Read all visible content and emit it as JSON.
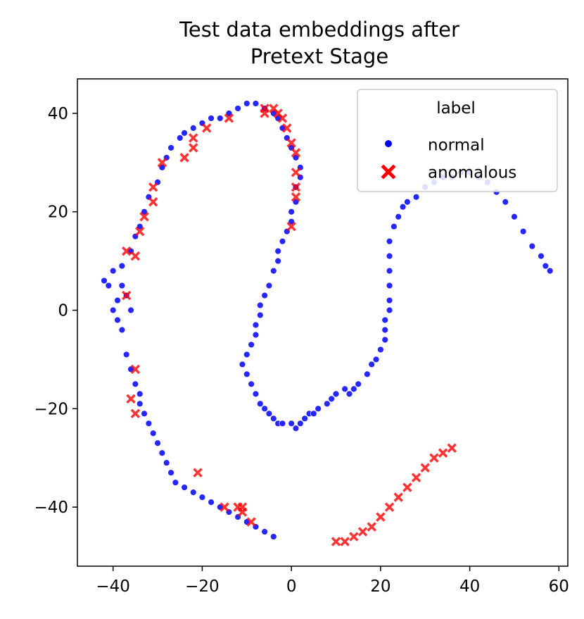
{
  "chart_data": {
    "type": "scatter",
    "title": [
      "Test data embeddings after",
      "Pretext Stage"
    ],
    "xlabel": "",
    "ylabel": "",
    "xlim": [
      -48,
      62
    ],
    "ylim": [
      -52,
      47
    ],
    "xticks": [
      -40,
      -20,
      0,
      20,
      40,
      60
    ],
    "yticks": [
      -40,
      -20,
      0,
      20,
      40
    ],
    "xtick_labels": [
      "−40",
      "−20",
      "0",
      "20",
      "40",
      "60"
    ],
    "ytick_labels": [
      "−40",
      "−20",
      "0",
      "20",
      "40"
    ],
    "grid": false,
    "legend": {
      "title": "label",
      "placement": "top-right",
      "entries": [
        {
          "label": "normal",
          "marker": "circle",
          "color": "#0000ff"
        },
        {
          "label": "anomalous",
          "marker": "x",
          "color": "#ff0000"
        }
      ]
    },
    "series": [
      {
        "name": "normal",
        "color": "#0000ff",
        "marker": "circle",
        "points": [
          [
            -41,
            5
          ],
          [
            -42,
            6
          ],
          [
            -40,
            8
          ],
          [
            -39,
            2
          ],
          [
            -40,
            0
          ],
          [
            -39,
            -2
          ],
          [
            -38,
            -4
          ],
          [
            -37,
            3
          ],
          [
            -38,
            5
          ],
          [
            -36,
            0
          ],
          [
            -38,
            9
          ],
          [
            -36,
            12
          ],
          [
            -35,
            15
          ],
          [
            -34,
            17
          ],
          [
            -33,
            20
          ],
          [
            -32,
            23
          ],
          [
            -30,
            26
          ],
          [
            -29,
            29
          ],
          [
            -28,
            31
          ],
          [
            -27,
            33
          ],
          [
            -25,
            35
          ],
          [
            -24,
            36
          ],
          [
            -22,
            37
          ],
          [
            -20,
            38
          ],
          [
            -18,
            39
          ],
          [
            -16,
            39
          ],
          [
            -14,
            40
          ],
          [
            -12,
            41
          ],
          [
            -10,
            42
          ],
          [
            -8,
            42
          ],
          [
            -6,
            41
          ],
          [
            -4,
            40
          ],
          [
            -3,
            39
          ],
          [
            -2,
            37
          ],
          [
            -1,
            35
          ],
          [
            0,
            33
          ],
          [
            1,
            31
          ],
          [
            2,
            29
          ],
          [
            2,
            27
          ],
          [
            1,
            25
          ],
          [
            1,
            22
          ],
          [
            0,
            20
          ],
          [
            0,
            18
          ],
          [
            -1,
            16
          ],
          [
            -2,
            14
          ],
          [
            -3,
            12
          ],
          [
            -3,
            10
          ],
          [
            -4,
            8
          ],
          [
            -5,
            5
          ],
          [
            -6,
            3
          ],
          [
            -7,
            1
          ],
          [
            -7,
            -1
          ],
          [
            -8,
            -3
          ],
          [
            -8,
            -5
          ],
          [
            -9,
            -7
          ],
          [
            -10,
            -9
          ],
          [
            -11,
            -11
          ],
          [
            -10,
            -13
          ],
          [
            -9,
            -15
          ],
          [
            -8,
            -17
          ],
          [
            -7,
            -19
          ],
          [
            -6,
            -20
          ],
          [
            -5,
            -21
          ],
          [
            -4,
            -22
          ],
          [
            -3,
            -23
          ],
          [
            -2,
            -23
          ],
          [
            0,
            -23
          ],
          [
            1,
            -24
          ],
          [
            2,
            -23
          ],
          [
            3,
            -22
          ],
          [
            4,
            -21
          ],
          [
            5,
            -21
          ],
          [
            6,
            -20
          ],
          [
            8,
            -19
          ],
          [
            9,
            -18
          ],
          [
            10,
            -17
          ],
          [
            12,
            -16
          ],
          [
            13,
            -17
          ],
          [
            14,
            -16
          ],
          [
            15,
            -15
          ],
          [
            17,
            -13
          ],
          [
            18,
            -11
          ],
          [
            19,
            -10
          ],
          [
            20,
            -8
          ],
          [
            21,
            -6
          ],
          [
            21,
            -4
          ],
          [
            21,
            -2
          ],
          [
            22,
            0
          ],
          [
            22,
            2
          ],
          [
            22,
            5
          ],
          [
            22,
            8
          ],
          [
            22,
            11
          ],
          [
            22,
            14
          ],
          [
            23,
            17
          ],
          [
            24,
            19
          ],
          [
            25,
            21
          ],
          [
            26,
            22
          ],
          [
            28,
            23
          ],
          [
            30,
            25
          ],
          [
            32,
            26
          ],
          [
            34,
            27
          ],
          [
            36,
            27
          ],
          [
            38,
            28
          ],
          [
            40,
            28
          ],
          [
            42,
            27
          ],
          [
            44,
            26
          ],
          [
            46,
            24
          ],
          [
            48,
            22
          ],
          [
            50,
            19
          ],
          [
            52,
            16
          ],
          [
            54,
            13
          ],
          [
            56,
            11
          ],
          [
            57,
            9
          ],
          [
            58,
            8
          ],
          [
            -37,
            -9
          ],
          [
            -36,
            -12
          ],
          [
            -35,
            -15
          ],
          [
            -34,
            -17
          ],
          [
            -34,
            -19
          ],
          [
            -33,
            -21
          ],
          [
            -32,
            -23
          ],
          [
            -31,
            -25
          ],
          [
            -30,
            -27
          ],
          [
            -29,
            -29
          ],
          [
            -28,
            -31
          ],
          [
            -27,
            -33
          ],
          [
            -26,
            -35
          ],
          [
            -24,
            -36
          ],
          [
            -22,
            -37
          ],
          [
            -20,
            -38
          ],
          [
            -18,
            -39
          ],
          [
            -16,
            -40
          ],
          [
            -14,
            -41
          ],
          [
            -12,
            -42
          ],
          [
            -10,
            -43
          ],
          [
            -8,
            -44
          ],
          [
            -6,
            -45
          ],
          [
            -4,
            -46
          ]
        ]
      },
      {
        "name": "anomalous",
        "color": "#ff0000",
        "marker": "x",
        "points": [
          [
            -37,
            12
          ],
          [
            -35,
            11
          ],
          [
            -34,
            16
          ],
          [
            -33,
            19
          ],
          [
            -31,
            22
          ],
          [
            -31,
            25
          ],
          [
            -29,
            30
          ],
          [
            -24,
            31
          ],
          [
            -22,
            33
          ],
          [
            -22,
            35
          ],
          [
            -19,
            37
          ],
          [
            -14,
            39
          ],
          [
            -6,
            41
          ],
          [
            -6,
            40
          ],
          [
            -4,
            41
          ],
          [
            -3,
            40
          ],
          [
            -2,
            39
          ],
          [
            -1,
            37
          ],
          [
            0,
            34
          ],
          [
            1,
            32
          ],
          [
            1,
            28
          ],
          [
            1,
            25
          ],
          [
            1,
            23
          ],
          [
            0,
            17
          ],
          [
            -37,
            3
          ],
          [
            -35,
            -12
          ],
          [
            -36,
            -18
          ],
          [
            -35,
            -21
          ],
          [
            -21,
            -33
          ],
          [
            -15,
            -40
          ],
          [
            -12,
            -40
          ],
          [
            -11,
            -41
          ],
          [
            -11,
            -40
          ],
          [
            -9,
            -43
          ],
          [
            10,
            -47
          ],
          [
            12,
            -47
          ],
          [
            14,
            -46
          ],
          [
            16,
            -45
          ],
          [
            18,
            -44
          ],
          [
            20,
            -42
          ],
          [
            22,
            -40
          ],
          [
            24,
            -38
          ],
          [
            26,
            -36
          ],
          [
            28,
            -34
          ],
          [
            30,
            -32
          ],
          [
            32,
            -30
          ],
          [
            34,
            -29
          ],
          [
            36,
            -28
          ]
        ]
      }
    ]
  }
}
